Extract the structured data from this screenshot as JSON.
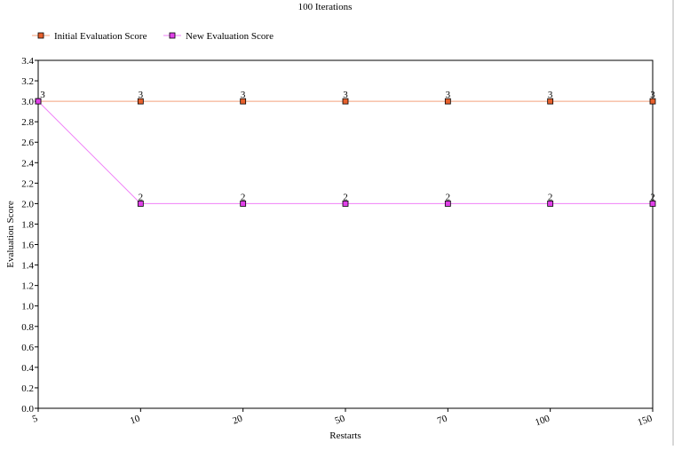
{
  "chart_data": {
    "type": "line",
    "title": "100 Iterations",
    "xlabel": "Restarts",
    "ylabel": "Evaluation Score",
    "categories": [
      "5",
      "10",
      "20",
      "50",
      "70",
      "100",
      "150"
    ],
    "series": [
      {
        "name": "Initial Evaluation Score",
        "color": "#e8602c",
        "line_color": "#f4a07c",
        "values": [
          3,
          3,
          3,
          3,
          3,
          3,
          3
        ],
        "labels": [
          "3",
          "3",
          "3",
          "3",
          "3",
          "3",
          "3"
        ]
      },
      {
        "name": "New Evaluation Score",
        "color": "#e040e8",
        "line_color": "#f080f8",
        "values": [
          3,
          2,
          2,
          2,
          2,
          2,
          2
        ],
        "labels": [
          "",
          "2",
          "2",
          "2",
          "2",
          "2",
          "2"
        ]
      }
    ],
    "ylim": [
      0,
      3.4
    ],
    "yticks": [
      0,
      0.2,
      0.4,
      0.6,
      0.8,
      1.0,
      1.2,
      1.4,
      1.6,
      1.8,
      2.0,
      2.2,
      2.4,
      2.6,
      2.8,
      3.0,
      3.2,
      3.4
    ],
    "ytick_labels": [
      "0.0",
      "0.2",
      "0.4",
      "0.6",
      "0.8",
      "1.0",
      "1.2",
      "1.4",
      "1.6",
      "1.8",
      "2.0",
      "2.2",
      "2.4",
      "2.6",
      "2.8",
      "3.0",
      "3.2",
      "3.4"
    ],
    "grid": false,
    "legend_position": "top-left"
  }
}
